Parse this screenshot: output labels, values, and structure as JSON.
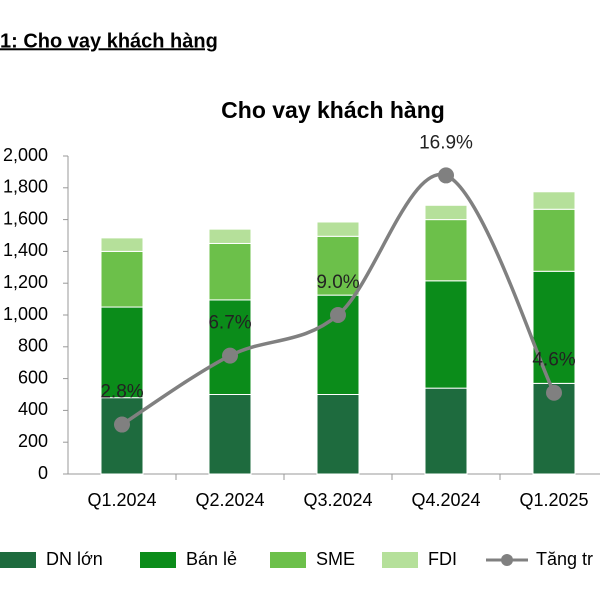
{
  "header": {
    "title": "1: Cho vay khách hàng"
  },
  "chart_data": {
    "type": "bar",
    "title": "Cho vay khách hàng",
    "stacked": true,
    "categories": [
      "Q1.2024",
      "Q2.2024",
      "Q3.2024",
      "Q4.2024",
      "Q1.2025"
    ],
    "series": [
      {
        "name": "DN lớn",
        "color": "#1e6b3e",
        "values": [
          480,
          500,
          500,
          540,
          570
        ]
      },
      {
        "name": "Bán lẻ",
        "color": "#0b8c1a",
        "values": [
          570,
          595,
          625,
          675,
          705
        ]
      },
      {
        "name": "SME",
        "color": "#6cc04a",
        "values": [
          350,
          355,
          370,
          385,
          390
        ]
      },
      {
        "name": "FDI",
        "color": "#b5e09a",
        "values": [
          85,
          90,
          90,
          90,
          110
        ]
      },
      {
        "name": "Tăng tr",
        "color": "#808080",
        "type": "line",
        "axis": "y2",
        "values": [
          2.8,
          6.7,
          9.0,
          16.9,
          4.6
        ],
        "value_labels": [
          "2.8%",
          "6.7%",
          "9.0%",
          "16.9%",
          "4.6%"
        ]
      }
    ],
    "ylim": [
      0,
      2000
    ],
    "yticks": [
      0,
      200,
      400,
      600,
      800,
      {
        "value": 1000,
        "label": "1,000"
      },
      {
        "value": 1200,
        "label": "1,200"
      },
      {
        "value": 1400,
        "label": "1,400"
      },
      {
        "value": 1600,
        "label": "1,600"
      },
      {
        "value": 1800,
        "label": "1,800"
      },
      {
        "value": 2000,
        "label": "2,000"
      }
    ],
    "y2lim": [
      0,
      18
    ],
    "legend": "bottom"
  }
}
